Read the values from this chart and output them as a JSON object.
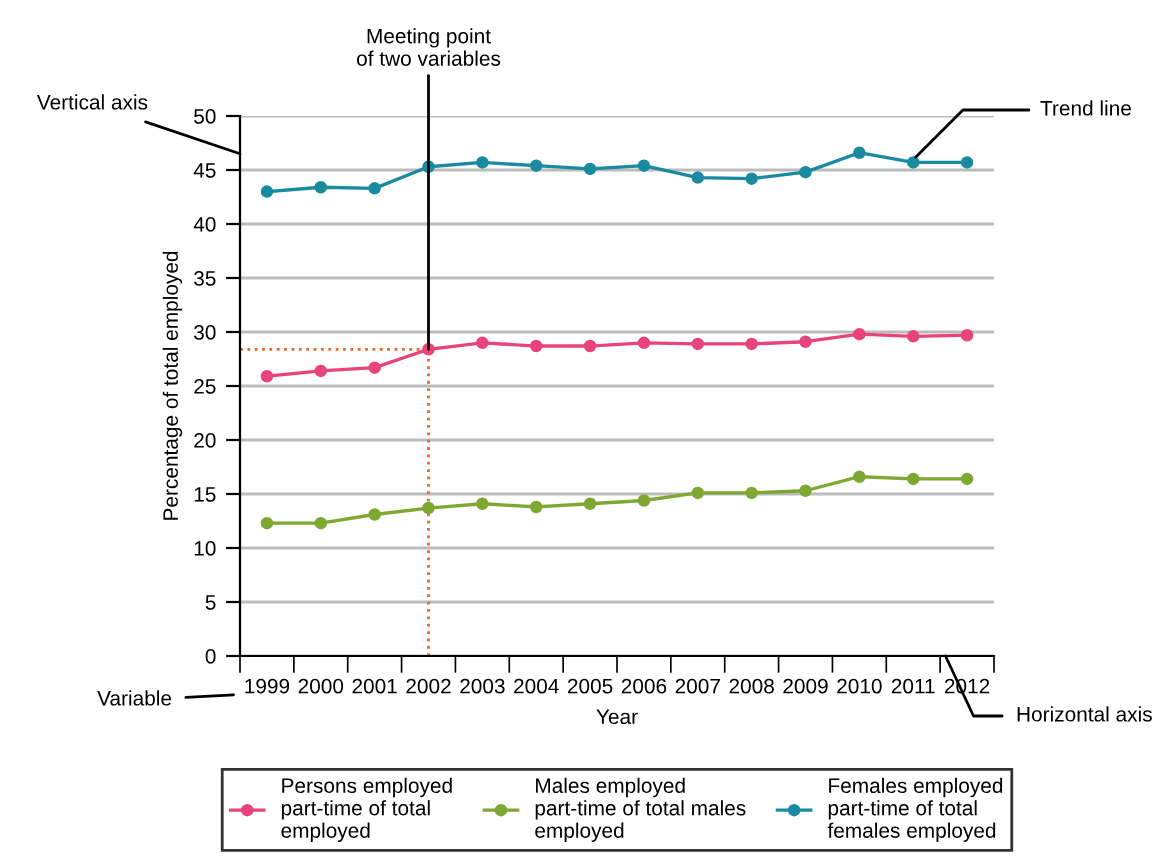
{
  "chart_data": {
    "type": "line",
    "xlabel": "Year",
    "ylabel": "Percentage of total employed",
    "categories": [
      "1999",
      "2000",
      "2001",
      "2002",
      "2003",
      "2004",
      "2005",
      "2006",
      "2007",
      "2008",
      "2009",
      "2010",
      "2011",
      "2012"
    ],
    "series": [
      {
        "name": "Persons employed\npart-time of total\nemployed",
        "color": "#e8447a",
        "values": [
          25.9,
          26.4,
          26.7,
          28.4,
          29.0,
          28.7,
          28.7,
          29.0,
          28.9,
          28.9,
          29.1,
          29.8,
          29.6,
          29.7
        ]
      },
      {
        "name": "Males employed\npart-time of total males\nemployed",
        "color": "#7ea832",
        "values": [
          12.3,
          12.3,
          13.1,
          13.7,
          14.1,
          13.8,
          14.1,
          14.4,
          15.1,
          15.1,
          15.3,
          16.6,
          16.4,
          16.4
        ]
      },
      {
        "name": "Females employed\npart-time of total\nfemales employed",
        "color": "#1a8aa0",
        "values": [
          43.0,
          43.4,
          43.3,
          45.3,
          45.7,
          45.4,
          45.1,
          45.4,
          44.3,
          44.2,
          44.8,
          46.6,
          45.7,
          45.7
        ]
      }
    ],
    "ylim": [
      0,
      50
    ],
    "yticks": [
      0,
      5,
      10,
      15,
      20,
      25,
      30,
      35,
      40,
      45,
      50
    ],
    "grid": "y",
    "legend": "bottom",
    "marker": "circle",
    "line_style": "solid",
    "ref_lines": [
      {
        "axis": "y",
        "value": 28.4,
        "color": "#f26522",
        "line_style": "dotted"
      },
      {
        "axis": "x",
        "value": "2002",
        "color": "#f26522",
        "line_style": "dotted"
      }
    ],
    "annotations": [
      {
        "text": "Meeting point\nof two variables",
        "x": "2002",
        "y": 28.4
      },
      {
        "text": "Trend line",
        "x": "2011",
        "y": 45.7
      },
      "Vertical axis",
      "Horizontal axis",
      "Variable"
    ]
  }
}
